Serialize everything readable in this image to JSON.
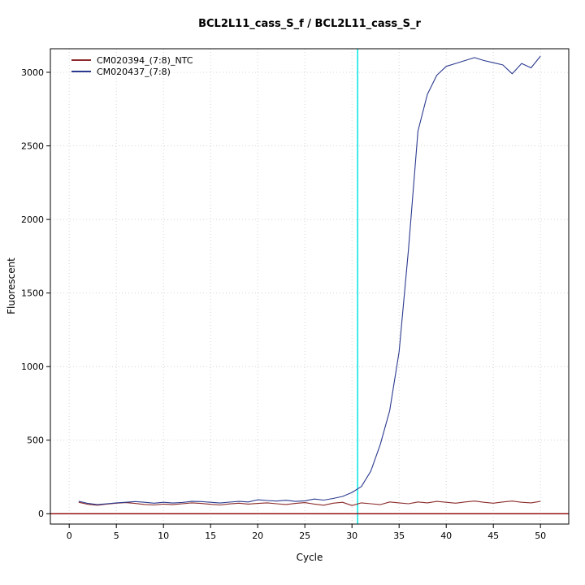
{
  "colors": {
    "background": "#ffffff",
    "grid": "#d4d4d4",
    "axis": "#000000",
    "ct_line": "#00e5e5",
    "threshold": "#8b0000"
  },
  "chart_data": {
    "type": "line",
    "title": "BCL2L11_cass_S_f / BCL2L11_cass_S_r",
    "xlabel": "Cycle",
    "ylabel": "Fluorescent",
    "xlim": [
      -2,
      53
    ],
    "ylim": [
      -70,
      3160
    ],
    "xticks": [
      0,
      5,
      10,
      15,
      20,
      25,
      30,
      35,
      40,
      45,
      50
    ],
    "yticks": [
      0,
      500,
      1000,
      1500,
      2000,
      2500,
      3000
    ],
    "grid": true,
    "legend_position": "top-left",
    "threshold_line_y": 0,
    "ct_marker_x": 30.6,
    "cycles": [
      1,
      2,
      3,
      4,
      5,
      6,
      7,
      8,
      9,
      10,
      11,
      12,
      13,
      14,
      15,
      16,
      17,
      18,
      19,
      20,
      21,
      22,
      23,
      24,
      25,
      26,
      27,
      28,
      29,
      30,
      31,
      32,
      33,
      34,
      35,
      36,
      37,
      38,
      39,
      40,
      41,
      42,
      43,
      44,
      45,
      46,
      47,
      48,
      49,
      50
    ],
    "series": [
      {
        "name": "CM020394_(7:8)_NTC",
        "color": "#8b2a2a",
        "values": [
          78,
          64,
          58,
          66,
          72,
          76,
          70,
          63,
          60,
          66,
          62,
          68,
          74,
          70,
          64,
          60,
          67,
          72,
          66,
          70,
          74,
          68,
          63,
          70,
          76,
          66,
          58,
          72,
          78,
          56,
          74,
          68,
          62,
          80,
          74,
          68,
          80,
          74,
          84,
          78,
          72,
          80,
          86,
          78,
          72,
          80,
          86,
          78,
          74,
          84
        ]
      },
      {
        "name": "CM020437_(7:8)",
        "color": "#2b3a8f",
        "values": [
          85,
          70,
          62,
          68,
          74,
          78,
          83,
          78,
          72,
          78,
          73,
          77,
          84,
          83,
          78,
          73,
          79,
          84,
          80,
          95,
          90,
          86,
          92,
          84,
          88,
          100,
          93,
          104,
          118,
          145,
          185,
          290,
          470,
          700,
          1100,
          1800,
          2600,
          2850,
          2980,
          3040,
          3060,
          3080,
          3100,
          3080,
          3065,
          3050,
          2990,
          3060,
          3030,
          3110
        ]
      }
    ]
  }
}
